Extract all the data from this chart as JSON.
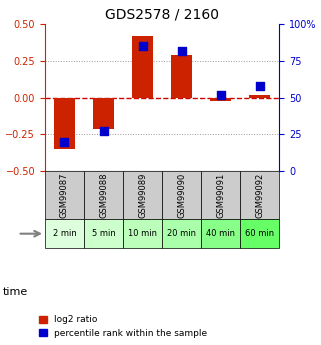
{
  "title": "GDS2578 / 2160",
  "samples": [
    "GSM99087",
    "GSM99088",
    "GSM99089",
    "GSM99090",
    "GSM99091",
    "GSM99092"
  ],
  "time_labels": [
    "2 min",
    "5 min",
    "10 min",
    "20 min",
    "40 min",
    "60 min"
  ],
  "log2_ratio": [
    -0.35,
    -0.21,
    0.42,
    0.29,
    -0.02,
    0.02
  ],
  "percentile_rank": [
    20,
    27,
    85,
    82,
    52,
    58
  ],
  "ylim_left": [
    -0.5,
    0.5
  ],
  "ylim_right": [
    0,
    100
  ],
  "yticks_left": [
    -0.5,
    -0.25,
    0,
    0.25,
    0.5
  ],
  "yticks_right": [
    0,
    25,
    50,
    75,
    100
  ],
  "bar_color": "#cc2200",
  "dot_color": "#0000cc",
  "hline_color": "#cc0000",
  "grid_color": "#999999",
  "sample_bg": "#cccccc",
  "time_colors": [
    "#ddffdd",
    "#ccffcc",
    "#bbffbb",
    "#aaffaa",
    "#88ff88",
    "#66ff66"
  ],
  "legend_labels": [
    "log2 ratio",
    "percentile rank within the sample"
  ],
  "bar_width": 0.55
}
